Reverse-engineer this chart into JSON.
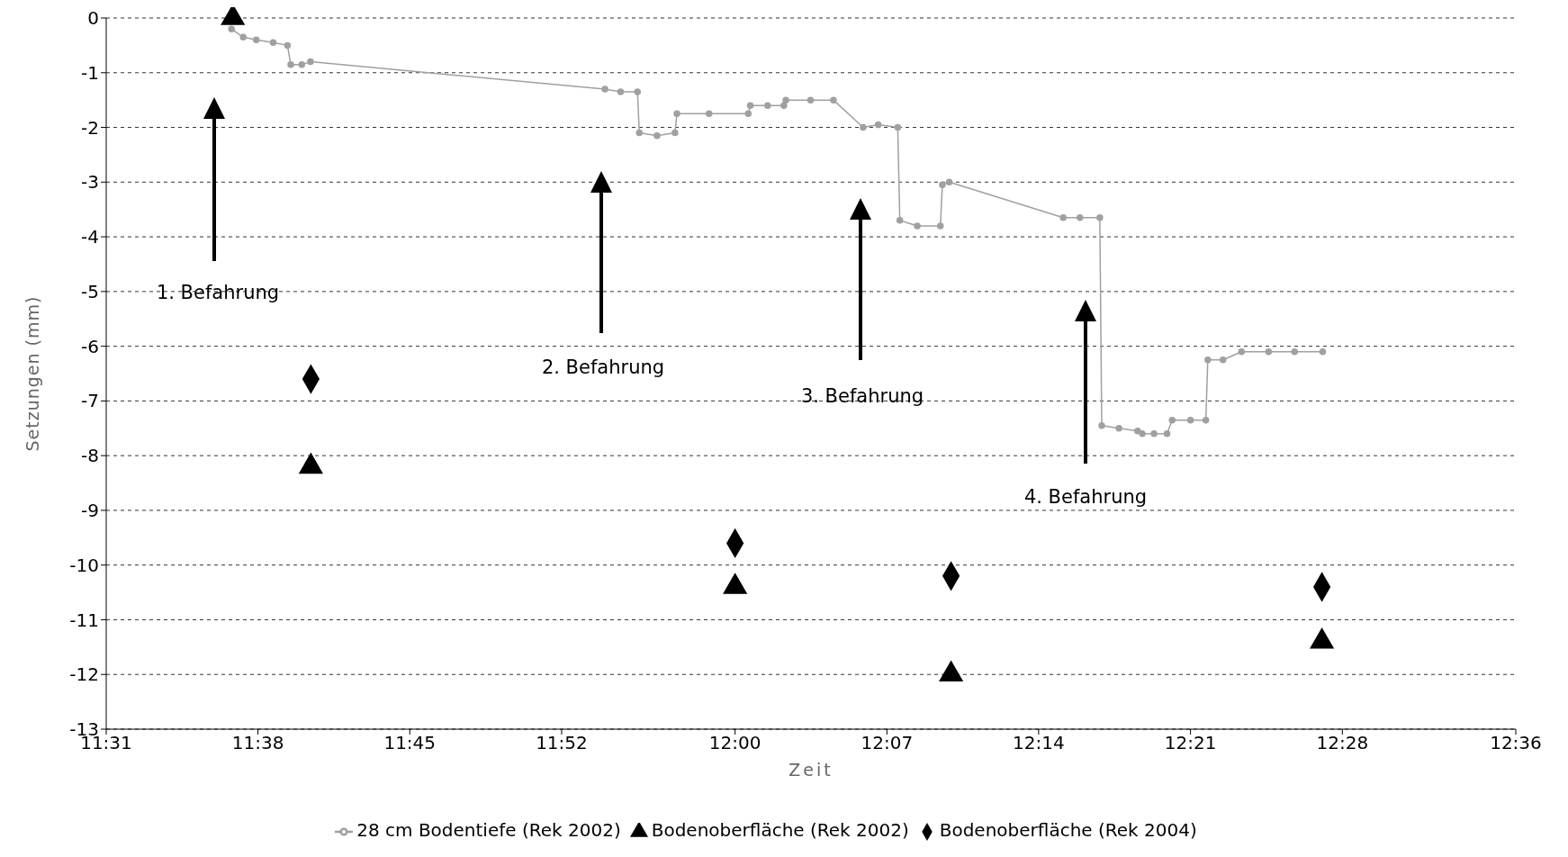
{
  "chart_data": {
    "type": "line",
    "xlabel": "Zeit",
    "ylabel": "Setzungen (mm)",
    "xlim": [
      11.5167,
      12.6
    ],
    "xticks": [
      {
        "value": 11.5167,
        "label": "11:31"
      },
      {
        "value": 11.6333,
        "label": "11:38"
      },
      {
        "value": 11.75,
        "label": "11:45"
      },
      {
        "value": 11.8667,
        "label": "11:52"
      },
      {
        "value": 12.0,
        "label": "12:00"
      },
      {
        "value": 12.1167,
        "label": "12:07"
      },
      {
        "value": 12.2333,
        "label": "12:14"
      },
      {
        "value": 12.35,
        "label": "12:21"
      },
      {
        "value": 12.4667,
        "label": "12:28"
      },
      {
        "value": 12.6,
        "label": "12:36"
      }
    ],
    "ylim": [
      -13,
      0
    ],
    "yticks": [
      0,
      -1,
      -2,
      -3,
      -4,
      -5,
      -6,
      -7,
      -8,
      -9,
      -10,
      -11,
      -12,
      -13
    ],
    "grid": "y",
    "legend": "bottom",
    "series": [
      {
        "name": "28 cm Bodentiefe (Rek 2002)",
        "marker": "circle",
        "color": "#a0a0a0",
        "x": [
          11.613,
          11.622,
          11.632,
          11.645,
          11.656,
          11.6585,
          11.667,
          11.6737,
          11.9,
          11.912,
          11.925,
          11.9264,
          11.94,
          11.9538,
          11.9553,
          11.98,
          12.0101,
          12.0117,
          12.025,
          12.0375,
          12.039,
          12.058,
          12.0756,
          12.0984,
          12.11,
          12.125,
          12.1266,
          12.14,
          12.1578,
          12.1593,
          12.1646,
          12.2522,
          12.265,
          12.2803,
          12.2818,
          12.295,
          12.3093,
          12.313,
          12.322,
          12.332,
          12.3359,
          12.35,
          12.3618,
          12.3633,
          12.375,
          12.3892,
          12.41,
          12.43,
          12.4516
        ],
        "values": [
          -0.2,
          -0.35,
          -0.4,
          -0.45,
          -0.5,
          -0.85,
          -0.85,
          -0.8,
          -1.3,
          -1.35,
          -1.35,
          -2.1,
          -2.15,
          -2.1,
          -1.75,
          -1.75,
          -1.75,
          -1.6,
          -1.6,
          -1.6,
          -1.5,
          -1.5,
          -1.5,
          -2.0,
          -1.95,
          -2.0,
          -3.7,
          -3.8,
          -3.8,
          -3.05,
          -3.0,
          -3.65,
          -3.65,
          -3.65,
          -7.45,
          -7.5,
          -7.55,
          -7.6,
          -7.6,
          -7.6,
          -7.35,
          -7.35,
          -7.35,
          -6.25,
          -6.25,
          -6.1,
          -6.1,
          -6.1,
          -6.1
        ]
      },
      {
        "name": "Bodenoberfläche (Rek 2002)",
        "type": "scatter",
        "marker": "triangle",
        "color": "#000000",
        "x": [
          11.614,
          11.674,
          12.0,
          12.166,
          12.451
        ],
        "values": [
          0,
          -8.2,
          -10.4,
          -12.0,
          -11.4
        ]
      },
      {
        "name": "Bodenoberfläche (Rek 2004)",
        "type": "scatter",
        "marker": "diamond",
        "color": "#000000",
        "x": [
          11.674,
          12.0,
          12.166,
          12.451
        ],
        "values": [
          -6.6,
          -9.6,
          -10.2,
          -10.4
        ]
      }
    ],
    "annotations": [
      "1. Befahrung",
      "2. Befahrung",
      "3. Befahrung",
      "4. Befahrung"
    ]
  }
}
